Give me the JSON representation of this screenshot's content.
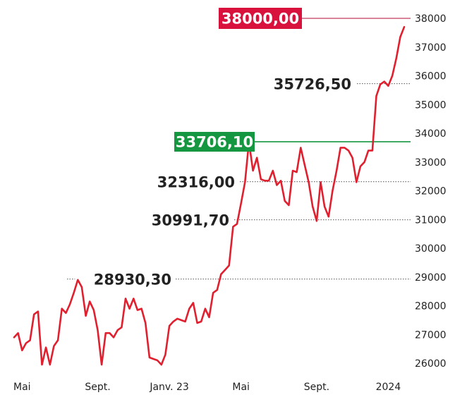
{
  "chart_data": {
    "type": "line",
    "title": "",
    "xlabel": "",
    "ylabel": "",
    "ylim": [
      25700,
      38300
    ],
    "y_ticks": [
      26000,
      27000,
      28000,
      29000,
      30000,
      31000,
      32000,
      33000,
      34000,
      35000,
      36000,
      37000,
      38000
    ],
    "y_tick_labels": [
      "26000",
      "27000",
      "28000",
      "29000",
      "30000",
      "31000",
      "32000",
      "33000",
      "34000",
      "35000",
      "36000",
      "37000",
      "38000"
    ],
    "x_tick_labels": [
      {
        "label": "Mai",
        "index": 2
      },
      {
        "label": "Sept.",
        "index": 21
      },
      {
        "label": "Janv. 23",
        "index": 39
      },
      {
        "label": "Mai",
        "index": 57
      },
      {
        "label": "Sept.",
        "index": 76
      },
      {
        "label": "2024",
        "index": 94
      }
    ],
    "grid": false,
    "colors": {
      "line": "#e0202f",
      "highlight_red": "#d8123d",
      "highlight_green": "#159640",
      "ref_red_line": "#c23b5d",
      "ref_green_line": "#159640",
      "dotted": "#555555"
    },
    "series": [
      {
        "values": [
          26900,
          27050,
          26450,
          26700,
          26800,
          27700,
          27800,
          25950,
          26550,
          25950,
          26600,
          26800,
          27900,
          27750,
          28050,
          28450,
          28900,
          28650,
          27650,
          28150,
          27850,
          27150,
          25950,
          27050,
          27050,
          26900,
          27150,
          27250,
          28250,
          27900,
          28250,
          27850,
          27900,
          27400,
          26200,
          26150,
          26100,
          25950,
          26300,
          27300,
          27450,
          27550,
          27500,
          27450,
          27900,
          28100,
          27400,
          27450,
          27900,
          27600,
          28450,
          28550,
          29100,
          29250,
          29400,
          30750,
          30850,
          31550,
          32300,
          33700,
          32700,
          33150,
          32400,
          32350,
          32350,
          32700,
          32200,
          32350,
          31650,
          31500,
          32700,
          32650,
          33500,
          32900,
          32300,
          31450,
          30950,
          32300,
          31450,
          31100,
          32000,
          32700,
          33500,
          33500,
          33400,
          33150,
          32300,
          32850,
          33000,
          33400,
          33400,
          35300,
          35700,
          35800,
          35650,
          36000,
          36600,
          37350,
          37700
        ]
      }
    ],
    "annotations": [
      {
        "label": "38000,00",
        "value": 38000,
        "style": "red-box"
      },
      {
        "label": "35726,50",
        "value": 35726.5,
        "style": "dotted"
      },
      {
        "label": "33706,10",
        "value": 33706.1,
        "style": "green-box"
      },
      {
        "label": "32316,00",
        "value": 32316,
        "style": "dotted"
      },
      {
        "label": "30991,70",
        "value": 30991.7,
        "style": "dotted"
      },
      {
        "label": "28930,30",
        "value": 28930.3,
        "style": "dotted"
      }
    ]
  }
}
